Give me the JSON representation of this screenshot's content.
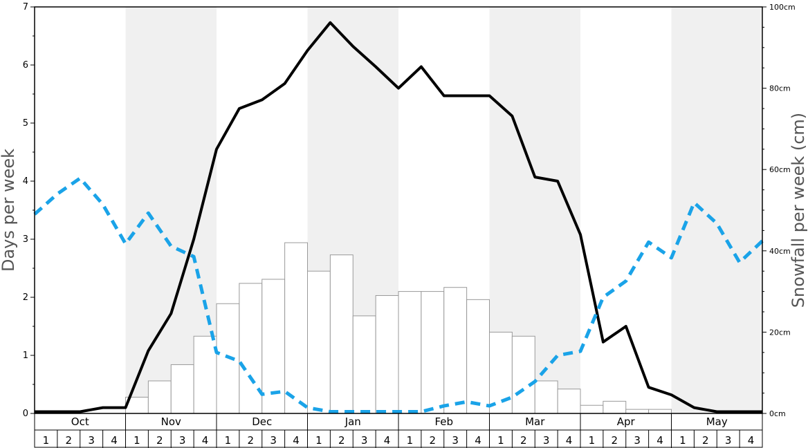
{
  "chart_data": {
    "type": "bar+line",
    "months": [
      "Oct",
      "Nov",
      "Dec",
      "Jan",
      "Feb",
      "Mar",
      "Apr",
      "May"
    ],
    "week_labels": [
      "1",
      "2",
      "3",
      "4"
    ],
    "ylabel_left": "Days per week",
    "ylabel_right": "Snowfall per week (cm)",
    "ylim_left": [
      0,
      7
    ],
    "ylim_right": [
      0,
      100
    ],
    "left_ticks": [
      0,
      1,
      2,
      3,
      4,
      5,
      6,
      7
    ],
    "right_ticks": [
      0,
      20,
      40,
      60,
      80,
      100
    ],
    "right_tick_labels": [
      "0cm",
      "20cm",
      "40cm",
      "60cm",
      "80cm",
      "100cm"
    ],
    "shaded_months": [
      "Nov",
      "Jan",
      "Mar",
      "May"
    ],
    "series": [
      {
        "type": "bar",
        "axis": "right",
        "values": [
          0,
          0,
          0,
          0,
          4,
          8,
          12,
          19,
          27,
          32,
          33,
          42,
          35,
          39,
          24,
          29,
          30,
          30,
          31,
          28,
          20,
          19,
          8,
          6,
          2,
          3,
          1,
          1,
          0,
          0,
          0,
          0
        ]
      },
      {
        "type": "line",
        "style": "solid",
        "color": "#000000",
        "axis": "left",
        "values": [
          0.03,
          0.03,
          0.03,
          0.1,
          0.1,
          1.08,
          1.72,
          3.0,
          4.55,
          5.25,
          5.4,
          5.68,
          6.25,
          6.73,
          6.32,
          5.97,
          5.6,
          5.97,
          5.47,
          5.47,
          5.47,
          5.12,
          4.07,
          4.0,
          3.08,
          1.23,
          1.5,
          0.45,
          0.32,
          0.1,
          0.03,
          0.03,
          0.03
        ]
      },
      {
        "type": "line",
        "style": "dashed",
        "color": "#1aa3e8",
        "axis": "left",
        "values": [
          3.43,
          3.78,
          4.05,
          3.6,
          2.92,
          3.45,
          2.88,
          2.7,
          1.05,
          0.9,
          0.33,
          0.38,
          0.1,
          0.03,
          0.03,
          0.03,
          0.03,
          0.03,
          0.13,
          0.2,
          0.13,
          0.28,
          0.55,
          1.0,
          1.07,
          2.0,
          2.28,
          2.95,
          2.68,
          3.63,
          3.27,
          2.6,
          2.97
        ]
      }
    ]
  }
}
